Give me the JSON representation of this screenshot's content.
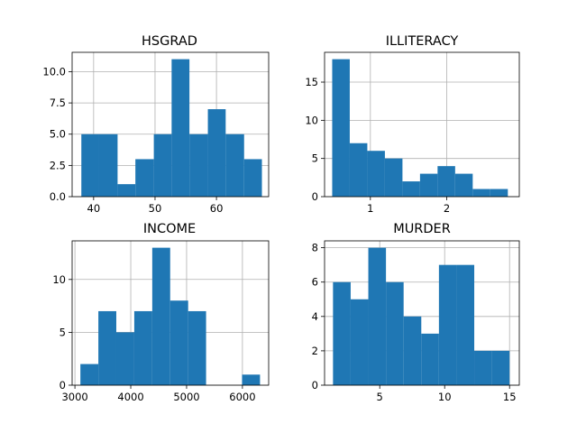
{
  "chart_data": [
    {
      "type": "bar",
      "title": "HSGRAD",
      "xlabel": "",
      "ylabel": "",
      "xlim": [
        36.5,
        68.5
      ],
      "ylim": [
        0,
        11.55
      ],
      "xticks": [
        40,
        50,
        60
      ],
      "yticks": [
        0.0,
        2.5,
        5.0,
        7.5,
        10.0
      ],
      "ytick_labels": [
        "0.0",
        "2.5",
        "5.0",
        "7.5",
        "10.0"
      ],
      "grid": true,
      "color": "#1f77b4",
      "bins": [
        {
          "x0": 38.0,
          "x1": 40.9,
          "value": 5
        },
        {
          "x0": 40.9,
          "x1": 43.9,
          "value": 5
        },
        {
          "x0": 43.9,
          "x1": 46.8,
          "value": 1
        },
        {
          "x0": 46.8,
          "x1": 49.8,
          "value": 3
        },
        {
          "x0": 49.8,
          "x1": 52.7,
          "value": 5
        },
        {
          "x0": 52.7,
          "x1": 55.6,
          "value": 11
        },
        {
          "x0": 55.6,
          "x1": 58.6,
          "value": 5
        },
        {
          "x0": 58.6,
          "x1": 61.5,
          "value": 7
        },
        {
          "x0": 61.5,
          "x1": 64.5,
          "value": 5
        },
        {
          "x0": 64.5,
          "x1": 67.4,
          "value": 3
        }
      ]
    },
    {
      "type": "bar",
      "title": "ILLITERACY",
      "xlabel": "",
      "ylabel": "",
      "xlim": [
        0.4,
        2.95
      ],
      "ylim": [
        0,
        18.9
      ],
      "xticks": [
        1,
        2
      ],
      "yticks": [
        0,
        5,
        10,
        15
      ],
      "ytick_labels": [
        "0",
        "5",
        "10",
        "15"
      ],
      "grid": true,
      "color": "#1f77b4",
      "bins": [
        {
          "x0": 0.5,
          "x1": 0.73,
          "value": 18
        },
        {
          "x0": 0.73,
          "x1": 0.96,
          "value": 7
        },
        {
          "x0": 0.96,
          "x1": 1.19,
          "value": 6
        },
        {
          "x0": 1.19,
          "x1": 1.42,
          "value": 5
        },
        {
          "x0": 1.42,
          "x1": 1.65,
          "value": 2
        },
        {
          "x0": 1.65,
          "x1": 1.88,
          "value": 3
        },
        {
          "x0": 1.88,
          "x1": 2.11,
          "value": 4
        },
        {
          "x0": 2.11,
          "x1": 2.34,
          "value": 3
        },
        {
          "x0": 2.34,
          "x1": 2.57,
          "value": 1
        },
        {
          "x0": 2.57,
          "x1": 2.8,
          "value": 1
        }
      ]
    },
    {
      "type": "bar",
      "title": "INCOME",
      "xlabel": "",
      "ylabel": "",
      "xlim": [
        2950,
        6470
      ],
      "ylim": [
        0,
        13.65
      ],
      "xticks": [
        3000,
        4000,
        5000,
        6000
      ],
      "yticks": [
        0,
        5,
        10
      ],
      "ytick_labels": [
        "0",
        "5",
        "10"
      ],
      "grid": true,
      "color": "#1f77b4",
      "bins": [
        {
          "x0": 3098,
          "x1": 3420,
          "value": 2
        },
        {
          "x0": 3420,
          "x1": 3741,
          "value": 7
        },
        {
          "x0": 3741,
          "x1": 4063,
          "value": 5
        },
        {
          "x0": 4063,
          "x1": 4385,
          "value": 7
        },
        {
          "x0": 4385,
          "x1": 4706,
          "value": 13
        },
        {
          "x0": 4706,
          "x1": 5028,
          "value": 8
        },
        {
          "x0": 5028,
          "x1": 5349,
          "value": 7
        },
        {
          "x0": 5349,
          "x1": 5671,
          "value": 0
        },
        {
          "x0": 5671,
          "x1": 5993,
          "value": 0
        },
        {
          "x0": 5993,
          "x1": 6315,
          "value": 1
        }
      ]
    },
    {
      "type": "bar",
      "title": "MURDER",
      "xlabel": "",
      "ylabel": "",
      "xlim": [
        0.75,
        15.75
      ],
      "ylim": [
        0,
        8.4
      ],
      "xticks": [
        5,
        10,
        15
      ],
      "yticks": [
        0,
        2,
        4,
        6,
        8
      ],
      "ytick_labels": [
        "0",
        "2",
        "4",
        "6",
        "8"
      ],
      "grid": true,
      "color": "#1f77b4",
      "bins": [
        {
          "x0": 1.4,
          "x1": 2.76,
          "value": 6
        },
        {
          "x0": 2.76,
          "x1": 4.12,
          "value": 5
        },
        {
          "x0": 4.12,
          "x1": 5.48,
          "value": 8
        },
        {
          "x0": 5.48,
          "x1": 6.84,
          "value": 6
        },
        {
          "x0": 6.84,
          "x1": 8.2,
          "value": 4
        },
        {
          "x0": 8.2,
          "x1": 9.56,
          "value": 3
        },
        {
          "x0": 9.56,
          "x1": 10.92,
          "value": 7
        },
        {
          "x0": 10.92,
          "x1": 12.28,
          "value": 7
        },
        {
          "x0": 12.28,
          "x1": 13.64,
          "value": 2
        },
        {
          "x0": 13.64,
          "x1": 15.0,
          "value": 2
        }
      ]
    }
  ]
}
